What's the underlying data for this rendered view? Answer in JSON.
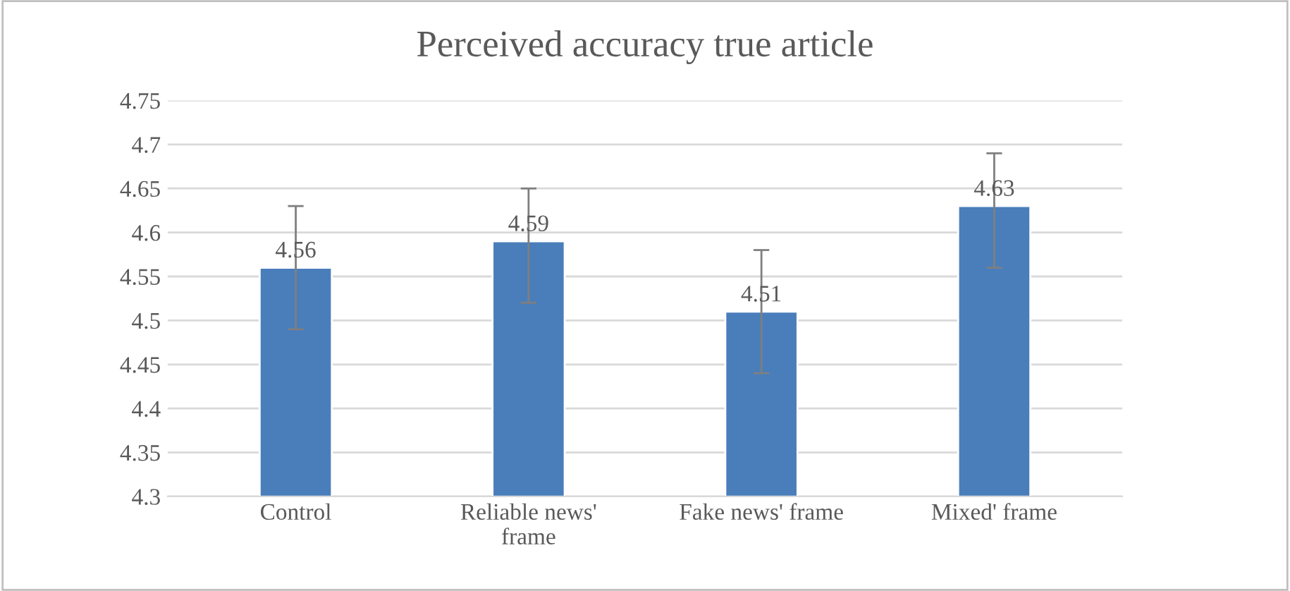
{
  "chart_data": {
    "type": "bar",
    "title": "Perceived accuracy true article",
    "categories": [
      "Control",
      "Reliable news' frame",
      "Fake news' frame",
      "Mixed' frame"
    ],
    "series": [
      {
        "color": "#4a7ebb",
        "values": [
          4.56,
          4.59,
          4.51,
          4.63
        ],
        "errors": [
          [
            4.49,
            4.63
          ],
          [
            4.52,
            4.65
          ],
          [
            4.44,
            4.58
          ],
          [
            4.56,
            4.69
          ]
        ]
      }
    ],
    "ylim": [
      4.3,
      4.75
    ],
    "yticks": [
      4.3,
      4.35,
      4.4,
      4.45,
      4.5,
      4.55,
      4.6,
      4.65,
      4.7,
      4.75
    ],
    "grid": "y",
    "data_labels": true,
    "legend": false
  }
}
